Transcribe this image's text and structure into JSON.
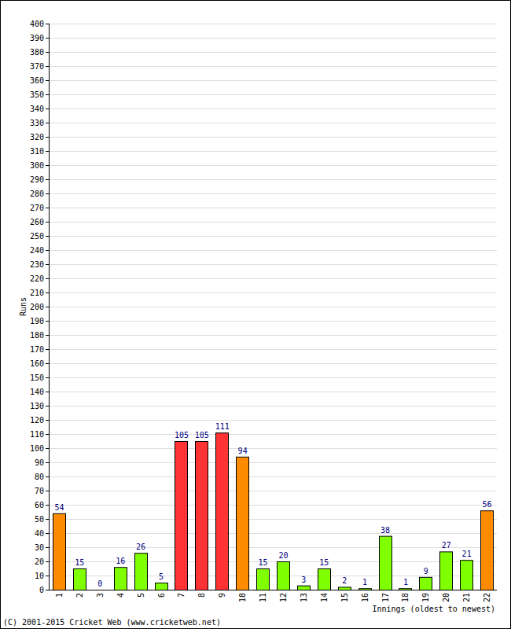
{
  "chart_data": {
    "type": "bar",
    "x_label": "Innings (oldest to newest)",
    "y_label": "Runs",
    "annotations": [
      "(C) 2001-2015 Cricket Web (www.cricketweb.net)"
    ],
    "categories": [
      "1",
      "2",
      "3",
      "4",
      "5",
      "6",
      "7",
      "8",
      "9",
      "10",
      "11",
      "12",
      "13",
      "14",
      "15",
      "16",
      "17",
      "18",
      "19",
      "20",
      "21",
      "22"
    ],
    "values": [
      54,
      15,
      0,
      16,
      26,
      5,
      105,
      105,
      111,
      94,
      15,
      20,
      3,
      15,
      2,
      1,
      38,
      1,
      9,
      27,
      21,
      56
    ],
    "colors": [
      "#ff8c00",
      "#80ff00",
      "#80ff00",
      "#80ff00",
      "#80ff00",
      "#80ff00",
      "#ff3333",
      "#ff3333",
      "#ff3333",
      "#ff8c00",
      "#80ff00",
      "#80ff00",
      "#80ff00",
      "#80ff00",
      "#80ff00",
      "#80ff00",
      "#80ff00",
      "#80ff00",
      "#80ff00",
      "#80ff00",
      "#80ff00",
      "#ff8c00"
    ],
    "ylim": [
      0,
      400
    ],
    "yticks": [
      0,
      10,
      20,
      30,
      40,
      50,
      60,
      70,
      80,
      90,
      100,
      110,
      120,
      130,
      140,
      150,
      160,
      170,
      180,
      190,
      200,
      210,
      220,
      230,
      240,
      250,
      260,
      270,
      280,
      290,
      300,
      310,
      320,
      330,
      340,
      350,
      360,
      370,
      380,
      390,
      400
    ],
    "grid": true,
    "data_labels": true
  }
}
